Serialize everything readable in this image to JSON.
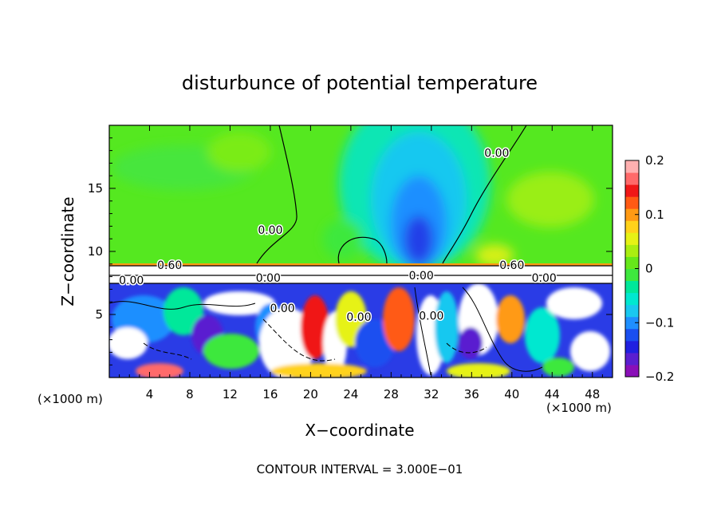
{
  "chart_data": {
    "type": "heatmap",
    "title": "disturbunce of potential temperature",
    "xlabel": "X−coordinate",
    "ylabel": "Z−coordinate",
    "x_unit_left": "(×1000 m)",
    "x_unit_right": "(×1000 m)",
    "xlim": [
      0,
      50
    ],
    "ylim": [
      0,
      20
    ],
    "x_ticks": [
      4,
      8,
      12,
      16,
      20,
      24,
      28,
      32,
      36,
      40,
      44,
      48
    ],
    "x_tick_labels": [
      "4",
      "8",
      "12",
      "16",
      "20",
      "24",
      "28",
      "32",
      "36",
      "40",
      "44",
      "48"
    ],
    "y_ticks": [
      5,
      10,
      15
    ],
    "y_tick_labels": [
      "5",
      "10",
      "15"
    ],
    "colorbar": {
      "range": [
        -0.2,
        0.2
      ],
      "tick_values": [
        0.2,
        0.1,
        0,
        -0.1,
        -0.2
      ],
      "tick_labels": [
        "0.2",
        "0.1",
        "0",
        "−0.1",
        "−0.2"
      ],
      "colors": [
        "#8a0fb8",
        "#5a1fd0",
        "#2020e0",
        "#1a4ff0",
        "#1f8fff",
        "#19c8f0",
        "#00e8d0",
        "#00e89a",
        "#3ee83e",
        "#66e81a",
        "#aaee11",
        "#e6f215",
        "#ffd21a",
        "#ff9a14",
        "#ff5a14",
        "#f01818",
        "#ff6a6a",
        "#ffb0b0"
      ]
    },
    "contour_labels": [
      {
        "text": "0.00",
        "x": 16.0,
        "y": 11.4
      },
      {
        "text": "0.00",
        "x": 38.5,
        "y": 17.5
      },
      {
        "text": "0.60",
        "x": 6.0,
        "y": 8.6
      },
      {
        "text": "0.60",
        "x": 40.0,
        "y": 8.6
      },
      {
        "text": "0.00",
        "x": 2.2,
        "y": 7.4
      },
      {
        "text": "0.00",
        "x": 15.8,
        "y": 7.6
      },
      {
        "text": "0.00",
        "x": 17.2,
        "y": 5.2
      },
      {
        "text": "0.00",
        "x": 24.8,
        "y": 4.5
      },
      {
        "text": "0.00",
        "x": 32.0,
        "y": 4.6
      },
      {
        "text": "0.00",
        "x": 31.0,
        "y": 7.8
      },
      {
        "text": "0.00",
        "x": 43.2,
        "y": 7.6
      }
    ],
    "footer": "CONTOUR INTERVAL = 3.000E−01"
  }
}
